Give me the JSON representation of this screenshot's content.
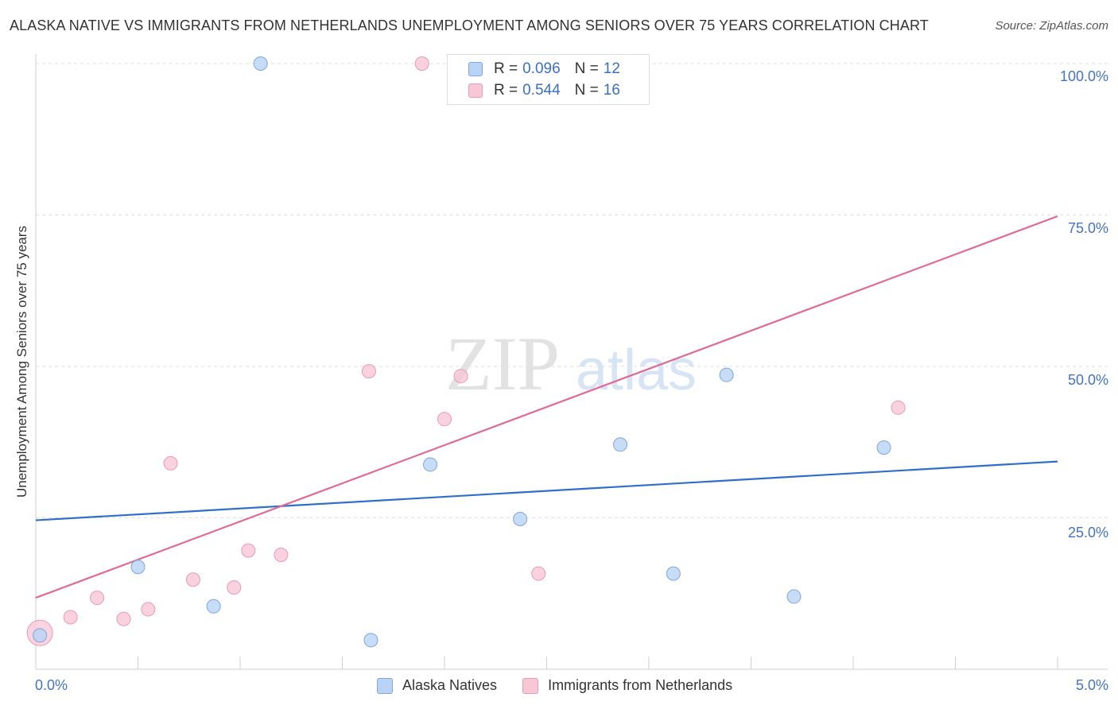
{
  "header": {
    "title": "ALASKA NATIVE VS IMMIGRANTS FROM NETHERLANDS UNEMPLOYMENT AMONG SENIORS OVER 75 YEARS CORRELATION CHART",
    "source": "Source: ZipAtlas.com"
  },
  "watermark": {
    "zip": "ZIP",
    "atlas": "atlas"
  },
  "legend": {
    "series1": {
      "r_label": "R = ",
      "r_value": "0.096",
      "n_label": "N = ",
      "n_value": "12"
    },
    "series2": {
      "r_label": "R = ",
      "r_value": "0.544",
      "n_label": "N = ",
      "n_value": "16"
    }
  },
  "chart_data": {
    "type": "scatter",
    "title": "ALASKA NATIVE VS IMMIGRANTS FROM NETHERLANDS UNEMPLOYMENT AMONG SENIORS OVER 75 YEARS CORRELATION CHART",
    "xlabel": "",
    "ylabel": "Unemployment Among Seniors over 75 years",
    "xlim": [
      0,
      5
    ],
    "ylim": [
      0,
      100
    ],
    "x_tick_labels": [
      "0.0%",
      "5.0%"
    ],
    "y_tick_labels": [
      "100.0%",
      "75.0%",
      "50.0%",
      "25.0%"
    ],
    "y_tick_values": [
      100,
      75,
      50,
      25
    ],
    "series": [
      {
        "name": "Alaska Natives",
        "color": "#b8d3f5",
        "stroke": "#7ea6dd",
        "line_color": "#2f6fcb",
        "points": [
          [
            0.02,
            5.6
          ],
          [
            1.1,
            100
          ],
          [
            0.5,
            16.9
          ],
          [
            0.87,
            10.4
          ],
          [
            1.64,
            4.8
          ],
          [
            1.93,
            33.8
          ],
          [
            2.37,
            24.8
          ],
          [
            2.86,
            37.1
          ],
          [
            3.12,
            15.8
          ],
          [
            3.38,
            48.6
          ],
          [
            3.71,
            12.0
          ],
          [
            4.15,
            36.6
          ]
        ],
        "trend": [
          [
            0,
            24.6
          ],
          [
            5,
            34.3
          ]
        ]
      },
      {
        "name": "Immigrants from Netherlands",
        "color": "#f9c6d6",
        "stroke": "#e79bb4",
        "line_color": "#e06a94",
        "points": [
          [
            0.02,
            6.0
          ],
          [
            0.17,
            8.6
          ],
          [
            0.3,
            11.8
          ],
          [
            0.43,
            8.3
          ],
          [
            0.55,
            9.9
          ],
          [
            0.66,
            34.0
          ],
          [
            0.77,
            14.8
          ],
          [
            0.97,
            13.5
          ],
          [
            1.04,
            19.6
          ],
          [
            1.2,
            18.9
          ],
          [
            1.63,
            49.2
          ],
          [
            1.89,
            100
          ],
          [
            2.0,
            41.3
          ],
          [
            2.08,
            48.4
          ],
          [
            2.46,
            15.8
          ],
          [
            4.22,
            43.2
          ]
        ],
        "trend": [
          [
            0,
            11.8
          ],
          [
            5,
            74.8
          ]
        ]
      }
    ]
  }
}
